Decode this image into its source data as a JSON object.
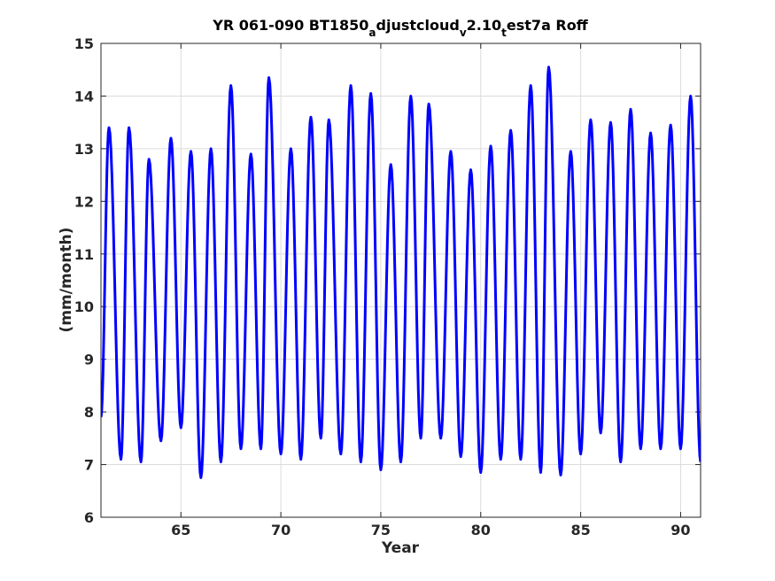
{
  "chart_data": {
    "type": "line",
    "title": {
      "main": "YR 061-090 BT1850",
      "segments": [
        {
          "text": "a",
          "sub": true
        },
        {
          "text": "djustcloud",
          "sub": false
        },
        {
          "text": "v",
          "sub": true
        },
        {
          "text": "2.10",
          "sub": false
        },
        {
          "text": "t",
          "sub": true
        },
        {
          "text": "est7a Roff",
          "sub": false
        }
      ]
    },
    "xlabel": "Year",
    "ylabel": "(mm/month)",
    "xlim": [
      61,
      91
    ],
    "ylim": [
      6,
      15
    ],
    "xticks": [
      65,
      70,
      75,
      80,
      85,
      90
    ],
    "yticks": [
      6,
      7,
      8,
      9,
      10,
      11,
      12,
      13,
      14,
      15
    ],
    "grid": true,
    "series_color": "#0000ff",
    "series": [
      {
        "seasonal_peaks_year": [
          61.4,
          62.4,
          63.4,
          64.5,
          65.5,
          66.5,
          67.5,
          68.5,
          69.4,
          70.5,
          71.5,
          72.4,
          73.5,
          74.5,
          75.5,
          76.5,
          77.4,
          78.5,
          79.5,
          80.5,
          81.5,
          82.5,
          83.4,
          84.5,
          85.5,
          86.5,
          87.5,
          88.5,
          89.5,
          90.5
        ],
        "seasonal_peaks_value": [
          13.4,
          13.4,
          12.8,
          13.2,
          12.95,
          13.0,
          14.2,
          12.9,
          14.35,
          13.0,
          13.6,
          13.55,
          14.2,
          14.05,
          12.7,
          14.0,
          13.85,
          12.95,
          12.6,
          13.05,
          13.35,
          14.2,
          14.55,
          12.95,
          13.55,
          13.5,
          13.75,
          13.3,
          13.45,
          14.0
        ],
        "seasonal_troughs_year": [
          61.0,
          62.0,
          63.0,
          64.0,
          65.0,
          66.0,
          67.0,
          68.0,
          69.0,
          70.0,
          71.0,
          72.0,
          73.0,
          74.0,
          75.0,
          76.0,
          77.0,
          78.0,
          79.0,
          80.0,
          81.0,
          82.0,
          83.0,
          84.0,
          85.0,
          86.0,
          87.0,
          88.0,
          89.0,
          90.0,
          91.0
        ],
        "seasonal_troughs_value": [
          7.9,
          7.1,
          7.05,
          7.45,
          7.7,
          6.75,
          7.05,
          7.3,
          7.3,
          7.2,
          7.1,
          7.5,
          7.2,
          7.05,
          6.9,
          7.05,
          7.5,
          7.5,
          7.15,
          6.85,
          7.1,
          7.1,
          6.85,
          6.8,
          7.2,
          7.6,
          7.05,
          7.3,
          7.3,
          7.3,
          7.05
        ]
      }
    ]
  }
}
